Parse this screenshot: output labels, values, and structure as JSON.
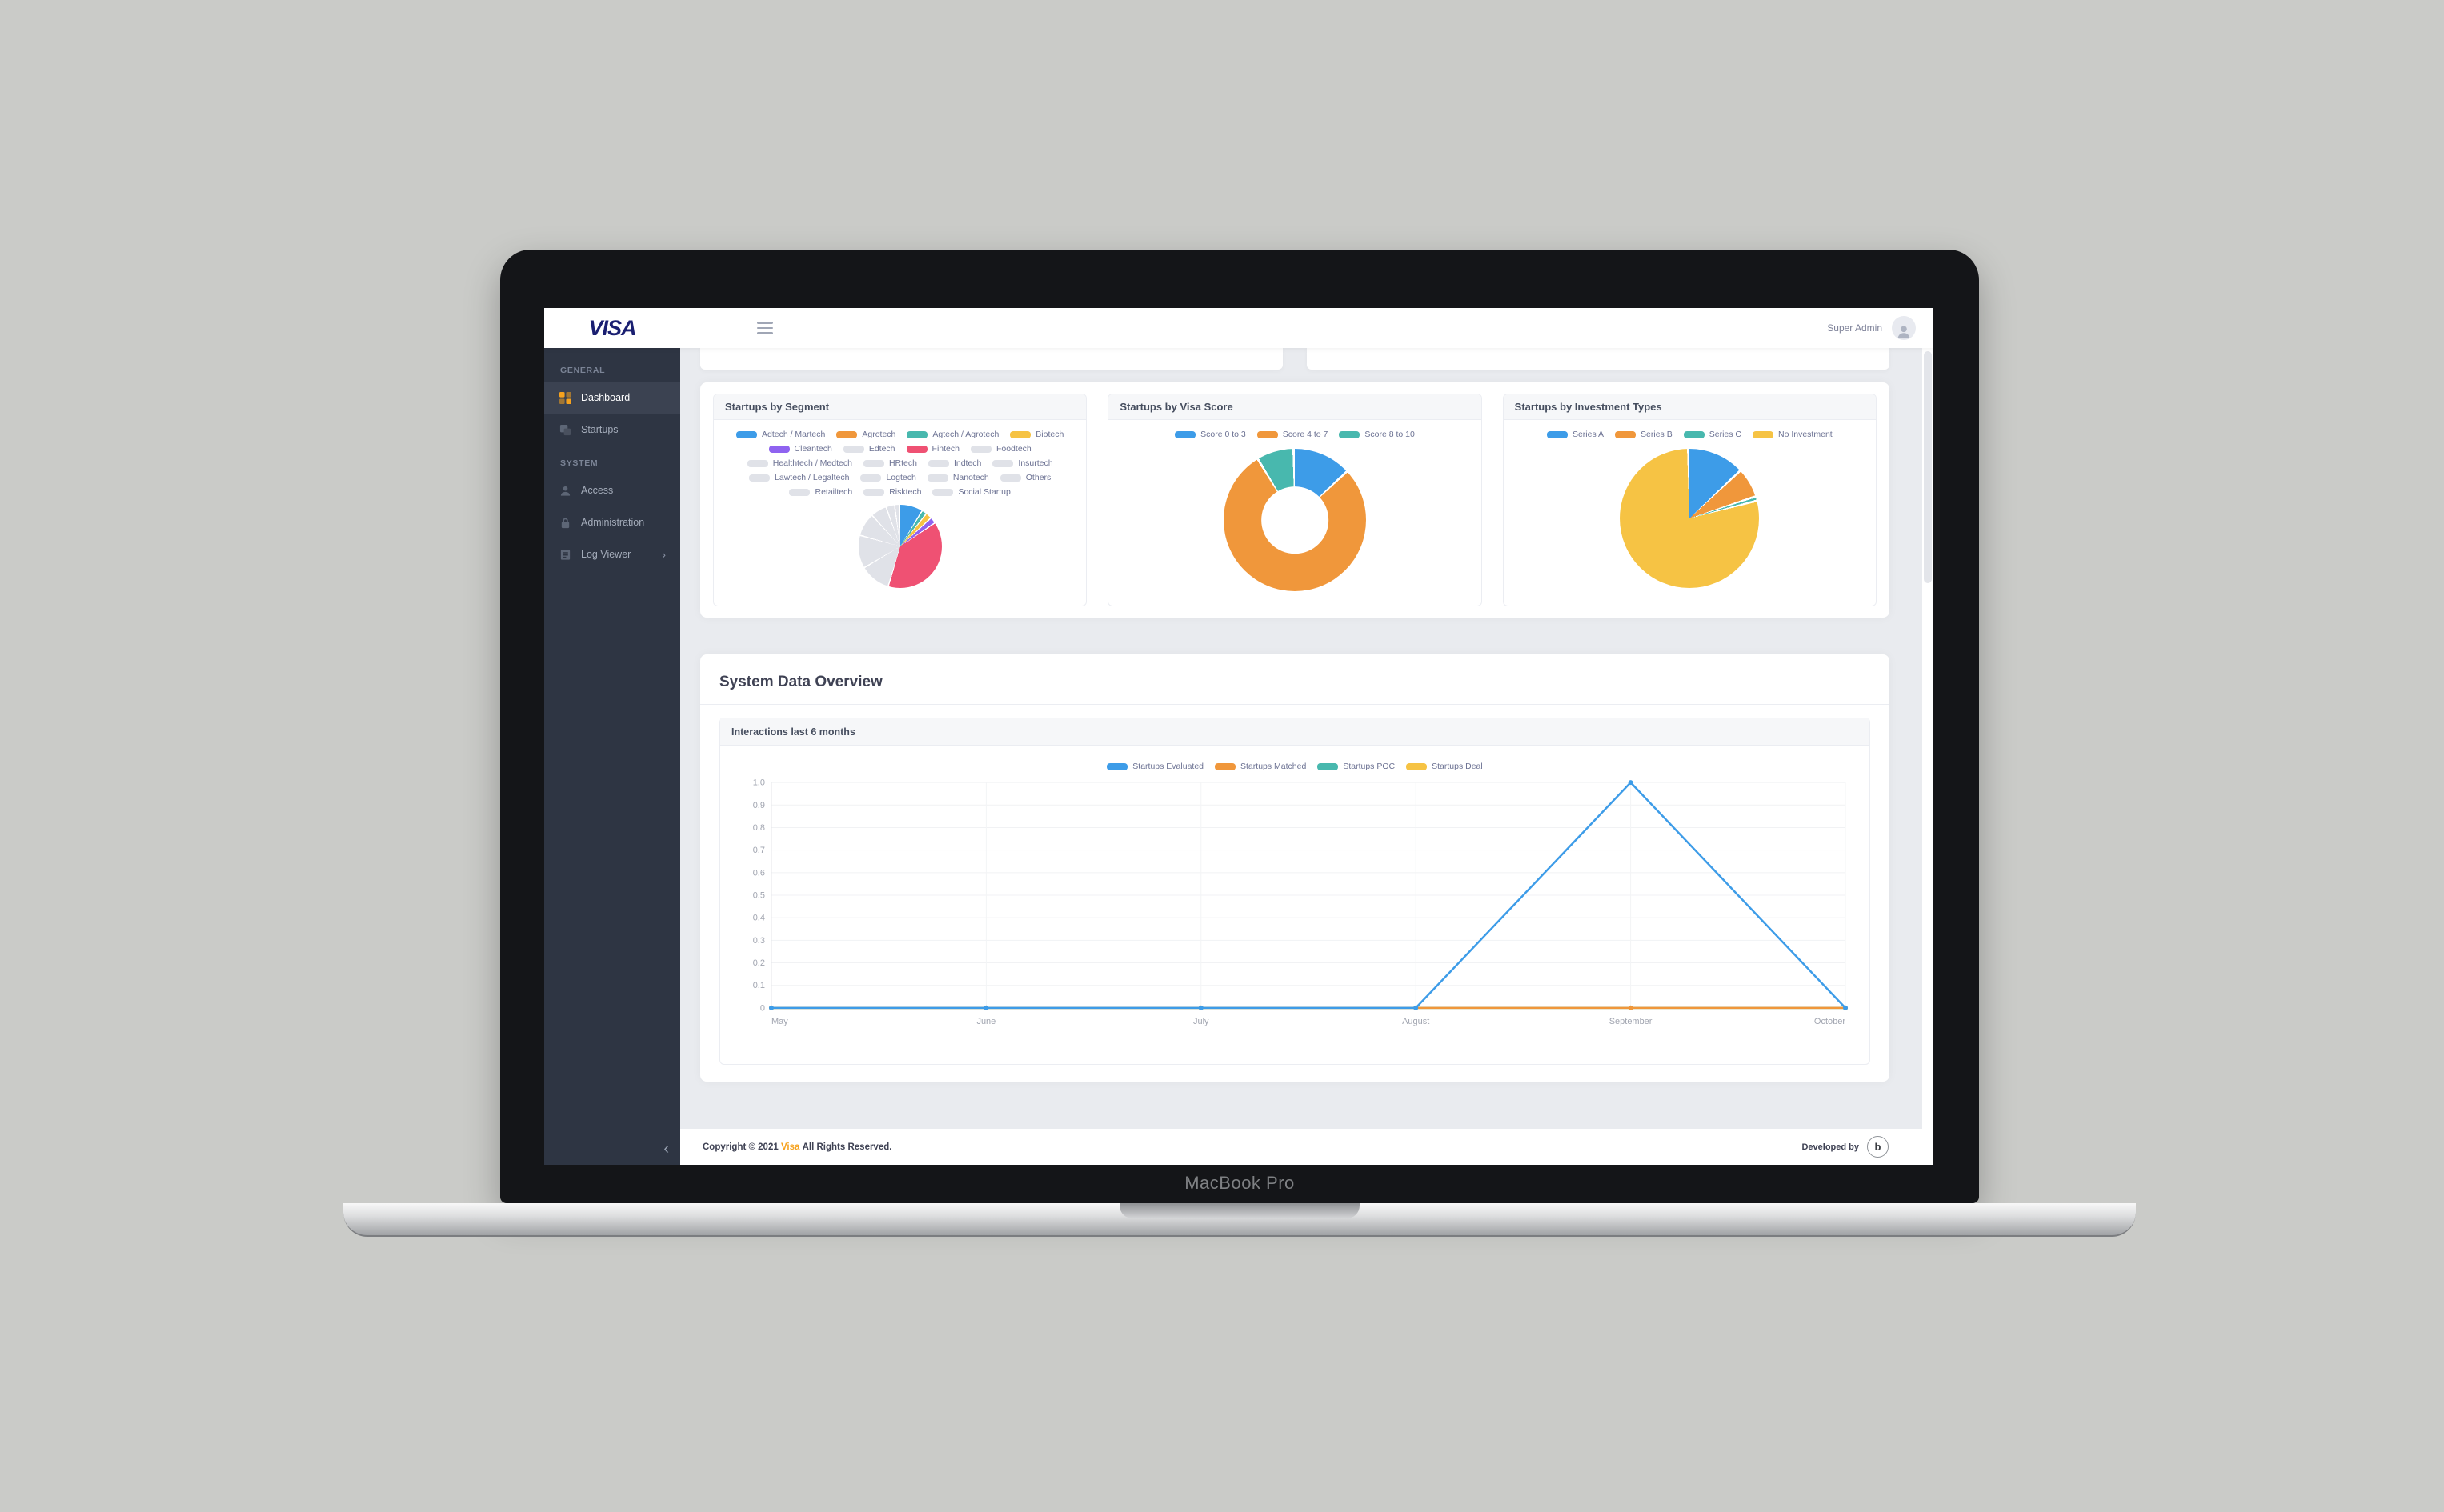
{
  "header": {
    "brand": "VISA",
    "user": "Super Admin"
  },
  "sidebar": {
    "sections": [
      {
        "label": "GENERAL"
      },
      {
        "label": "SYSTEM"
      }
    ],
    "items": [
      {
        "label": "Dashboard"
      },
      {
        "label": "Startups"
      },
      {
        "label": "Access"
      },
      {
        "label": "Administration"
      },
      {
        "label": "Log Viewer"
      }
    ],
    "log_viewer_chevron": "›",
    "collapse_icon": "‹"
  },
  "overview": {
    "title": "System Data Overview"
  },
  "footer": {
    "copyright_prefix": "Copyright © 2021",
    "brand": "Visa",
    "copyright_suffix": "All Rights Reserved.",
    "developed_by": "Developed by",
    "dev_logo_glyph": "b"
  },
  "laptop": {
    "label": "MacBook Pro"
  },
  "chart_data": [
    {
      "type": "pie",
      "title": "Startups by Segment",
      "legend_position": "top",
      "labels": [
        "Adtech / Martech",
        "Agrotech",
        "Agtech / Agrotech",
        "Biotech",
        "Cleantech",
        "Edtech",
        "Fintech",
        "Foodtech",
        "Healthtech / Medtech",
        "HRtech",
        "Indtech",
        "Insurtech",
        "Lawtech / Legaltech",
        "Logtech",
        "Nanotech",
        "Others",
        "Retailtech",
        "Risktech",
        "Social Startup"
      ],
      "colors": [
        "#3d9ce8",
        "#f0973b",
        "#48b8ae",
        "#f6c344",
        "#8f63f0",
        "#e0e2e8",
        "#ef5173",
        "#e0e2e8",
        "#e0e2e8",
        "#e0e2e8",
        "#e0e2e8",
        "#e0e2e8",
        "#e0e2e8",
        "#e0e2e8",
        "#e0e2e8",
        "#e0e2e8",
        "#e0e2e8",
        "#e0e2e8",
        "#e0e2e8"
      ],
      "values": [
        9,
        0,
        1.5,
        2,
        2,
        0,
        41,
        12,
        13,
        9,
        6,
        3,
        1.5,
        0,
        0,
        0,
        0,
        0,
        0
      ]
    },
    {
      "type": "doughnut",
      "title": "Startups by Visa Score",
      "legend_position": "top",
      "cutout": "47%",
      "labels": [
        "Score 0 to 3",
        "Score 4 to 7",
        "Score 8 to 10"
      ],
      "colors": [
        "#3d9ce8",
        "#f0973b",
        "#48b8ae"
      ],
      "values": [
        13,
        79,
        8
      ]
    },
    {
      "type": "pie",
      "title": "Startups by Investment Types",
      "legend_position": "top",
      "labels": [
        "Series A",
        "Series B",
        "Series C",
        "No Investment"
      ],
      "colors": [
        "#3d9ce8",
        "#f0973b",
        "#48b8ae",
        "#f6c344"
      ],
      "values": [
        13,
        6.5,
        0.5,
        80
      ]
    },
    {
      "type": "line",
      "title": "Interactions last 6 months",
      "legend_position": "top-center",
      "grid": true,
      "x": [
        "May",
        "June",
        "July",
        "August",
        "September",
        "October"
      ],
      "yticks": [
        "1.0",
        "0.9",
        "0.8",
        "0.7",
        "0.6",
        "0.5",
        "0.4",
        "0.3",
        "0.2",
        "0.1",
        "0"
      ],
      "ylim": [
        0,
        1
      ],
      "series": [
        {
          "name": "Startups Evaluated",
          "color": "#3d9ce8",
          "values": [
            0,
            0,
            0,
            0,
            1,
            0
          ]
        },
        {
          "name": "Startups Matched",
          "color": "#f0973b",
          "values": [
            0,
            0,
            0,
            0,
            0,
            0
          ]
        },
        {
          "name": "Startups POC",
          "color": "#48b8ae",
          "values": [
            0,
            0,
            0,
            0,
            0,
            0
          ]
        },
        {
          "name": "Startups Deal",
          "color": "#f6c344",
          "values": [
            0,
            0,
            0,
            0,
            0,
            0
          ]
        }
      ]
    }
  ]
}
